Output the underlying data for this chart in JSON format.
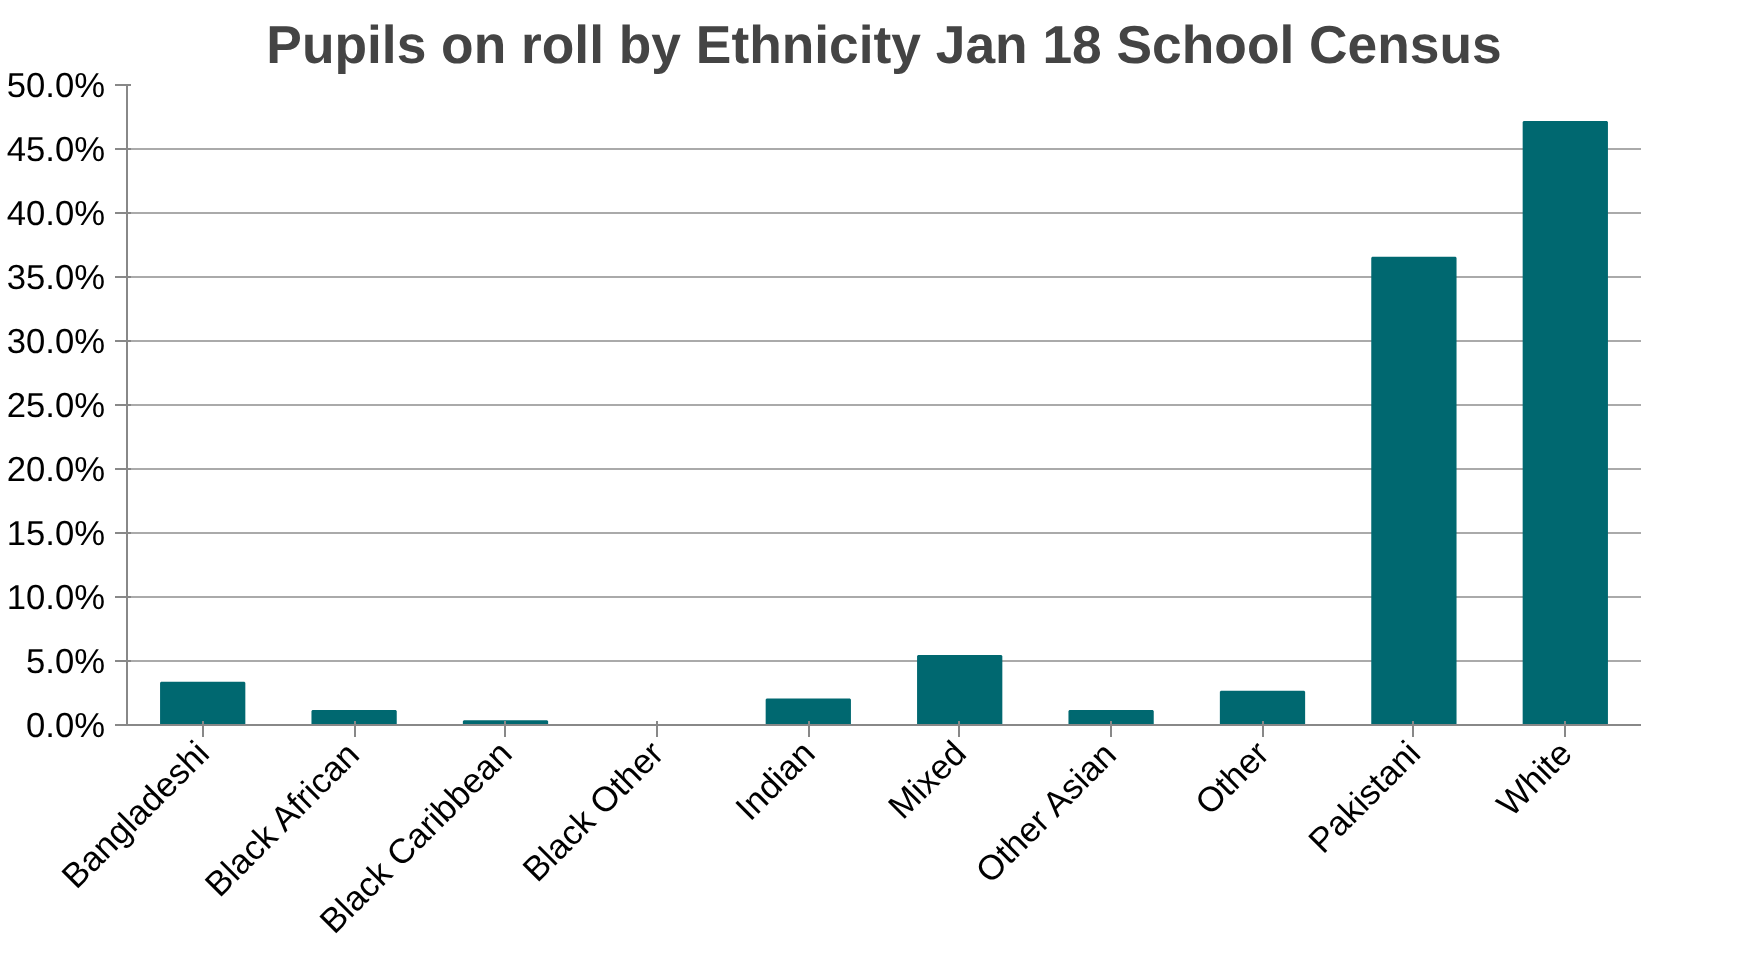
{
  "chart_data": {
    "type": "bar",
    "title": "Pupils on roll by Ethnicity Jan 18 School Census",
    "categories": [
      "Bangladeshi",
      "Black African",
      "Black Caribbean",
      "Black Other",
      "Indian",
      "Mixed",
      "Other Asian",
      "Other",
      "Pakistani",
      "White"
    ],
    "values": [
      3.3,
      1.1,
      0.3,
      0,
      2.0,
      5.4,
      1.1,
      2.6,
      36.5,
      47.1
    ],
    "color": "#006870",
    "ylim": [
      0,
      50
    ],
    "yticks": [
      {
        "value": 0,
        "label": "0.0%"
      },
      {
        "value": 5,
        "label": "5.0%"
      },
      {
        "value": 10,
        "label": "10.0%"
      },
      {
        "value": 15,
        "label": "15.0%"
      },
      {
        "value": 20,
        "label": "20.0%"
      },
      {
        "value": 25,
        "label": "25.0%"
      },
      {
        "value": 30,
        "label": "30.0%"
      },
      {
        "value": 35,
        "label": "35.0%"
      },
      {
        "value": 40,
        "label": "40.0%"
      },
      {
        "value": 45,
        "label": "45.0%"
      },
      {
        "value": 50,
        "label": "50.0%"
      }
    ],
    "grid": "y"
  }
}
